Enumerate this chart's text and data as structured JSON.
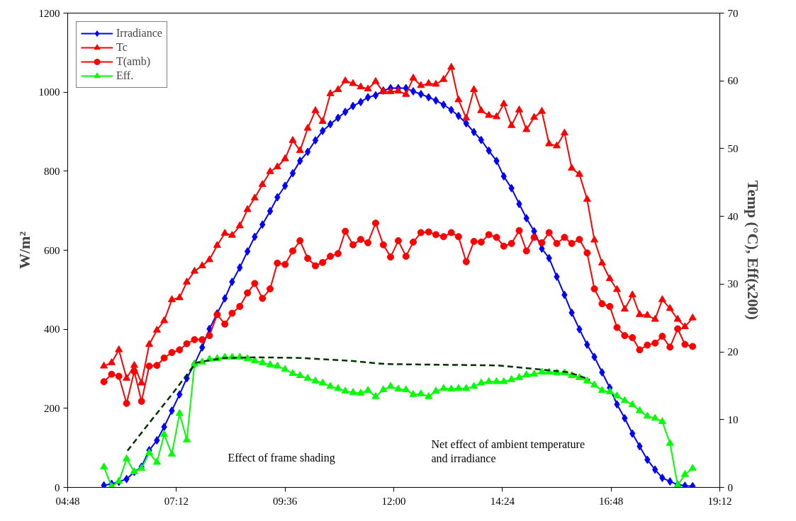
{
  "chart_data": {
    "type": "line",
    "ylabel": "W/m²",
    "y2label": "Temp (°C), Eff(x200)",
    "x": [
      5.6,
      5.77,
      5.93,
      6.1,
      6.27,
      6.43,
      6.6,
      6.77,
      6.93,
      7.1,
      7.27,
      7.43,
      7.6,
      7.77,
      7.93,
      8.1,
      8.27,
      8.43,
      8.6,
      8.77,
      8.93,
      9.1,
      9.27,
      9.43,
      9.6,
      9.77,
      9.93,
      10.1,
      10.27,
      10.43,
      10.6,
      10.77,
      10.93,
      11.1,
      11.27,
      11.43,
      11.6,
      11.77,
      11.93,
      12.1,
      12.27,
      12.43,
      12.6,
      12.77,
      12.93,
      13.1,
      13.27,
      13.43,
      13.6,
      13.77,
      13.93,
      14.1,
      14.27,
      14.43,
      14.6,
      14.77,
      14.93,
      15.1,
      15.27,
      15.43,
      15.6,
      15.77,
      15.93,
      16.1,
      16.27,
      16.43,
      16.6,
      16.77,
      16.93,
      17.1,
      17.27,
      17.43,
      17.6,
      17.77,
      17.93,
      18.1,
      18.27,
      18.43,
      18.6
    ],
    "xlim": [
      4.8,
      19.2
    ],
    "xticks": [
      {
        "value": 4.8,
        "label": "04:48"
      },
      {
        "value": 7.2,
        "label": "07:12"
      },
      {
        "value": 9.6,
        "label": "09:36"
      },
      {
        "value": 12,
        "label": "12:00"
      },
      {
        "value": 14.4,
        "label": "14:24"
      },
      {
        "value": 16.8,
        "label": "16:48"
      },
      {
        "value": 19.2,
        "label": "19:12"
      }
    ],
    "ylim": [
      0,
      1200
    ],
    "yticks": [
      0,
      200,
      400,
      600,
      800,
      1000,
      1200
    ],
    "y2lim": [
      0,
      70
    ],
    "y2ticks": [
      0,
      10,
      20,
      30,
      40,
      50,
      60,
      70
    ],
    "legend": "top left",
    "line_style": "solid",
    "series": [
      {
        "name": "Irradiance",
        "color": "#0000ff",
        "marker": "diamond",
        "values": [
          5,
          9,
          14,
          21,
          39,
          52,
          94,
          119,
          153,
          194,
          235,
          276,
          312,
          354,
          401,
          440,
          478,
          520,
          556,
          597,
          634,
          665,
          699,
          734,
          763,
          795,
          826,
          849,
          878,
          902,
          919,
          935,
          950,
          965,
          975,
          987,
          992,
          1004,
          1010,
          1010,
          1010,
          1002,
          995,
          987,
          979,
          968,
          955,
          940,
          921,
          899,
          879,
          852,
          826,
          787,
          757,
          717,
          681,
          648,
          604,
          580,
          533,
          487,
          442,
          400,
          361,
          330,
          291,
          252,
          210,
          175,
          136,
          104,
          70,
          45,
          24,
          15,
          7,
          4,
          3
        ]
      },
      {
        "name": "Tc",
        "color": "#ff0000",
        "marker": "triangle",
        "axis": "y2",
        "values": [
          17.9,
          18.4,
          20.3,
          16.1,
          18.0,
          15.4,
          21.1,
          23.2,
          24.6,
          27.7,
          28.0,
          30.3,
          31.9,
          32.7,
          33.6,
          35.7,
          37.5,
          37.2,
          38.6,
          41.0,
          42.7,
          44.7,
          46.6,
          47.3,
          48.5,
          51.2,
          49.7,
          53.0,
          55.6,
          54.0,
          58.1,
          58.7,
          60.0,
          59.6,
          59.1,
          58.8,
          59.9,
          58.4,
          58.4,
          58.5,
          58.0,
          60.4,
          59.3,
          59.6,
          59.5,
          60.2,
          62.0,
          57.2,
          54.5,
          58.7,
          55.6,
          54.9,
          54.7,
          56.6,
          53.4,
          55.7,
          52.8,
          54.6,
          55.5,
          50.7,
          50.4,
          52.3,
          47.1,
          46.2,
          42.5,
          36.5,
          33.1,
          30.8,
          29.2,
          26.3,
          28.4,
          25.5,
          25.4,
          24.8,
          27.7,
          26.4,
          24.8,
          23.7,
          25.0
        ]
      },
      {
        "name": "T(amb)",
        "color": "#ff0000",
        "marker": "circle",
        "axis": "y2",
        "values": [
          15.6,
          16.7,
          16.4,
          12.4,
          17.1,
          12.7,
          17.9,
          18.0,
          19.1,
          19.9,
          20.3,
          21.2,
          21.8,
          21.8,
          22.4,
          25.5,
          24.1,
          25.7,
          26.7,
          28.7,
          30.1,
          27.9,
          29.3,
          33.1,
          32.9,
          34.9,
          36.4,
          33.8,
          32.7,
          33.2,
          34.1,
          34.5,
          37.8,
          35.8,
          36.6,
          36.1,
          39.0,
          35.8,
          34.0,
          36.4,
          34.1,
          36.2,
          37.6,
          37.7,
          37.3,
          37.0,
          37.6,
          37.0,
          33.3,
          36.3,
          36.2,
          37.3,
          36.9,
          35.6,
          36.0,
          37.9,
          34.9,
          36.9,
          36.1,
          37.6,
          36.0,
          36.9,
          36.0,
          36.6,
          34.6,
          29.3,
          27.1,
          26.7,
          23.6,
          22.4,
          22.1,
          20.3,
          21.0,
          21.3,
          22.3,
          20.7,
          23.4,
          21.1,
          20.8
        ]
      },
      {
        "name": "Eff.",
        "color": "#00ff00",
        "marker": "triangle",
        "axis": "y2",
        "values": [
          3.0,
          0.1,
          0.9,
          4.2,
          2.3,
          2.8,
          5.1,
          3.7,
          7.8,
          4.9,
          10.9,
          7.0,
          18.2,
          18.5,
          18.9,
          19.0,
          19.2,
          19.2,
          19.2,
          19.0,
          18.7,
          18.4,
          18.1,
          17.9,
          17.4,
          16.8,
          16.5,
          16.1,
          15.7,
          15.4,
          14.9,
          14.6,
          14.2,
          14.0,
          13.9,
          14.3,
          13.4,
          14.4,
          14.9,
          14.5,
          14.4,
          13.7,
          13.8,
          13.4,
          14.2,
          14.6,
          14.5,
          14.6,
          14.6,
          14.9,
          15.4,
          15.6,
          15.6,
          15.6,
          15.9,
          16.2,
          16.6,
          16.7,
          17.0,
          17.0,
          16.9,
          16.9,
          16.5,
          16.2,
          15.7,
          15.1,
          14.3,
          14.1,
          13.5,
          12.8,
          12.2,
          11.3,
          10.5,
          10.2,
          9.7,
          6.5,
          0.3,
          1.9,
          2.8
        ]
      },
      {
        "color": "#003300",
        "marker": "none",
        "line_style": "dashed",
        "axis": "y2",
        "x": [
          6.12,
          6.6,
          7.1,
          7.63,
          8.25,
          9.0,
          9.96,
          11.0,
          11.82,
          13.0,
          14.3,
          15.08,
          15.86,
          16.33
        ],
        "values": [
          5.4,
          9.5,
          13.7,
          18.4,
          19.1,
          19.2,
          19.1,
          18.7,
          18.2,
          18.1,
          18.0,
          17.5,
          17.0,
          15.9
        ]
      }
    ],
    "annotations": [
      "Effect of frame shading",
      "Net effect of ambient temperature\nand irradiance"
    ]
  }
}
